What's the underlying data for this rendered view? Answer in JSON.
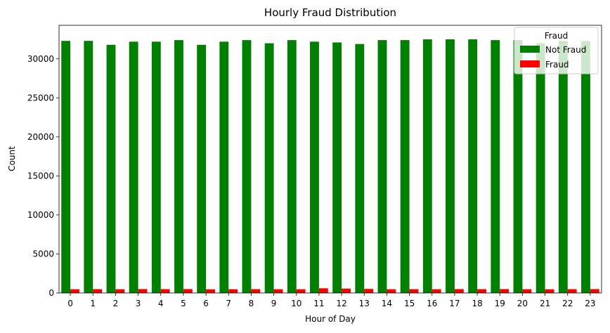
{
  "chart_data": {
    "type": "bar",
    "title": "Hourly Fraud Distribution",
    "xlabel": "Hour of Day",
    "ylabel": "Count",
    "categories": [
      "0",
      "1",
      "2",
      "3",
      "4",
      "5",
      "6",
      "7",
      "8",
      "9",
      "10",
      "11",
      "12",
      "13",
      "14",
      "15",
      "16",
      "17",
      "18",
      "19",
      "20",
      "21",
      "22",
      "23"
    ],
    "series": [
      {
        "name": "Not Fraud",
        "color": "#008000",
        "values": [
          32300,
          32300,
          31800,
          32200,
          32200,
          32400,
          31800,
          32200,
          32400,
          32000,
          32400,
          32200,
          32100,
          31900,
          32400,
          32400,
          32500,
          32500,
          32500,
          32400,
          32400,
          32000,
          32300,
          32300
        ]
      },
      {
        "name": "Fraud",
        "color": "#ff0000",
        "values": [
          480,
          490,
          480,
          500,
          490,
          500,
          470,
          480,
          490,
          480,
          480,
          600,
          560,
          520,
          480,
          490,
          480,
          500,
          490,
          500,
          480,
          470,
          490,
          500
        ]
      }
    ],
    "ylim": [
      0,
      34300
    ],
    "yticks": [
      0,
      5000,
      10000,
      15000,
      20000,
      25000,
      30000
    ],
    "grid": false,
    "legend": {
      "title": "Fraud",
      "position": "top-right"
    }
  }
}
